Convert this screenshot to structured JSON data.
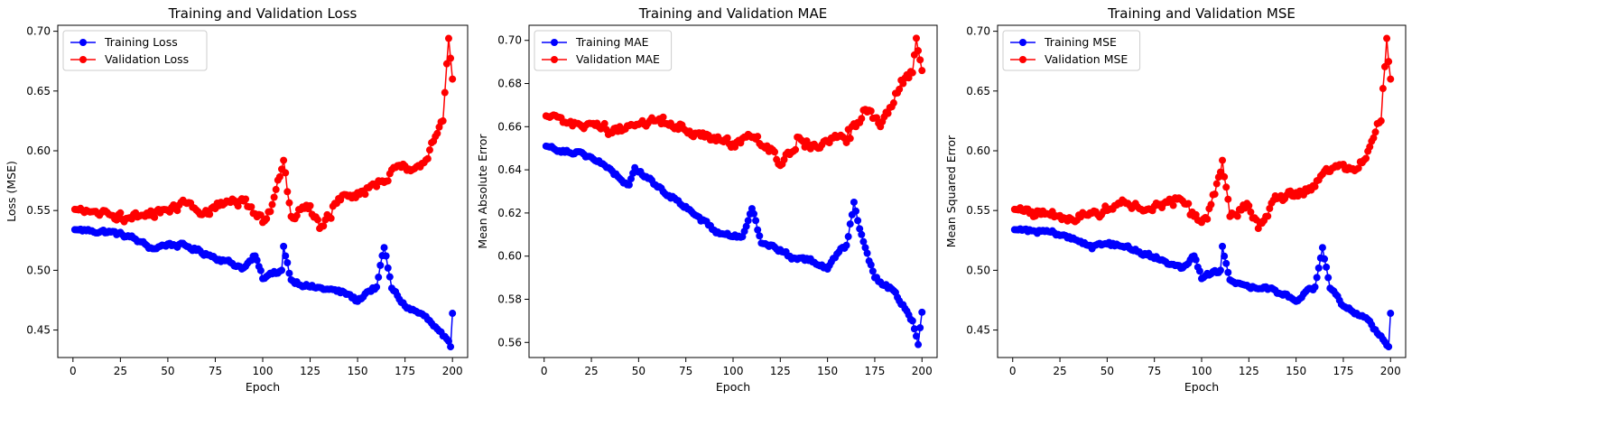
{
  "chart_data": [
    {
      "type": "line",
      "title": "Training and Validation Loss",
      "xlabel": "Epoch",
      "ylabel": "Loss (MSE)",
      "xlim": [
        -8,
        208
      ],
      "ylim": [
        0.427,
        0.705
      ],
      "xticks": [
        0,
        25,
        50,
        75,
        100,
        125,
        150,
        175,
        200
      ],
      "yticks": [
        0.45,
        0.5,
        0.55,
        0.6,
        0.65,
        0.7
      ],
      "ytick_decimals": 2,
      "grid": false,
      "legend_position": "upper-left",
      "x_start": 1,
      "series": [
        {
          "name": "Training Loss",
          "color": "#0000ff",
          "anchors": [
            [
              1,
              0.534
            ],
            [
              10,
              0.533
            ],
            [
              20,
              0.532
            ],
            [
              30,
              0.528
            ],
            [
              35,
              0.524
            ],
            [
              42,
              0.518
            ],
            [
              50,
              0.522
            ],
            [
              60,
              0.52
            ],
            [
              70,
              0.514
            ],
            [
              80,
              0.508
            ],
            [
              90,
              0.502
            ],
            [
              96,
              0.512
            ],
            [
              100,
              0.493
            ],
            [
              105,
              0.497
            ],
            [
              110,
              0.5
            ],
            [
              111,
              0.52
            ],
            [
              115,
              0.492
            ],
            [
              125,
              0.486
            ],
            [
              135,
              0.484
            ],
            [
              145,
              0.48
            ],
            [
              150,
              0.474
            ],
            [
              155,
              0.482
            ],
            [
              160,
              0.486
            ],
            [
              164,
              0.519
            ],
            [
              168,
              0.485
            ],
            [
              175,
              0.47
            ],
            [
              185,
              0.462
            ],
            [
              195,
              0.445
            ],
            [
              199,
              0.436
            ],
            [
              200,
              0.464
            ]
          ]
        },
        {
          "name": "Validation Loss",
          "color": "#ff0000",
          "anchors": [
            [
              1,
              0.551
            ],
            [
              10,
              0.549
            ],
            [
              20,
              0.546
            ],
            [
              30,
              0.544
            ],
            [
              40,
              0.546
            ],
            [
              50,
              0.55
            ],
            [
              60,
              0.556
            ],
            [
              70,
              0.55
            ],
            [
              80,
              0.556
            ],
            [
              90,
              0.558
            ],
            [
              100,
              0.54
            ],
            [
              105,
              0.555
            ],
            [
              111,
              0.592
            ],
            [
              115,
              0.545
            ],
            [
              125,
              0.554
            ],
            [
              130,
              0.535
            ],
            [
              140,
              0.56
            ],
            [
              150,
              0.565
            ],
            [
              160,
              0.57
            ],
            [
              170,
              0.586
            ],
            [
              180,
              0.585
            ],
            [
              185,
              0.59
            ],
            [
              190,
              0.608
            ],
            [
              195,
              0.625
            ],
            [
              198,
              0.694
            ],
            [
              200,
              0.66
            ]
          ]
        }
      ]
    },
    {
      "type": "line",
      "title": "Training and Validation MAE",
      "xlabel": "Epoch",
      "ylabel": "Mean Absolute Error",
      "xlim": [
        -8,
        208
      ],
      "ylim": [
        0.553,
        0.707
      ],
      "xticks": [
        0,
        25,
        50,
        75,
        100,
        125,
        150,
        175,
        200
      ],
      "yticks": [
        0.56,
        0.58,
        0.6,
        0.62,
        0.64,
        0.66,
        0.68,
        0.7
      ],
      "ytick_decimals": 2,
      "grid": false,
      "legend_position": "upper-left",
      "x_start": 1,
      "series": [
        {
          "name": "Training MAE",
          "color": "#0000ff",
          "anchors": [
            [
              1,
              0.651
            ],
            [
              10,
              0.649
            ],
            [
              20,
              0.648
            ],
            [
              30,
              0.643
            ],
            [
              40,
              0.636
            ],
            [
              45,
              0.633
            ],
            [
              48,
              0.641
            ],
            [
              55,
              0.636
            ],
            [
              60,
              0.632
            ],
            [
              70,
              0.626
            ],
            [
              75,
              0.623
            ],
            [
              80,
              0.619
            ],
            [
              90,
              0.612
            ],
            [
              100,
              0.609
            ],
            [
              105,
              0.609
            ],
            [
              110,
              0.622
            ],
            [
              115,
              0.606
            ],
            [
              125,
              0.603
            ],
            [
              130,
              0.6
            ],
            [
              140,
              0.598
            ],
            [
              150,
              0.594
            ],
            [
              155,
              0.601
            ],
            [
              160,
              0.605
            ],
            [
              164,
              0.625
            ],
            [
              168,
              0.61
            ],
            [
              175,
              0.59
            ],
            [
              185,
              0.584
            ],
            [
              195,
              0.57
            ],
            [
              198,
              0.559
            ],
            [
              200,
              0.574
            ]
          ]
        },
        {
          "name": "Validation MAE",
          "color": "#ff0000",
          "anchors": [
            [
              1,
              0.665
            ],
            [
              10,
              0.662
            ],
            [
              20,
              0.66
            ],
            [
              30,
              0.659
            ],
            [
              40,
              0.66
            ],
            [
              50,
              0.661
            ],
            [
              60,
              0.663
            ],
            [
              70,
              0.66
            ],
            [
              80,
              0.657
            ],
            [
              90,
              0.655
            ],
            [
              100,
              0.652
            ],
            [
              110,
              0.655
            ],
            [
              120,
              0.65
            ],
            [
              125,
              0.642
            ],
            [
              135,
              0.655
            ],
            [
              145,
              0.65
            ],
            [
              155,
              0.655
            ],
            [
              165,
              0.66
            ],
            [
              170,
              0.668
            ],
            [
              178,
              0.66
            ],
            [
              185,
              0.671
            ],
            [
              190,
              0.68
            ],
            [
              195,
              0.685
            ],
            [
              197,
              0.701
            ],
            [
              200,
              0.686
            ]
          ]
        }
      ]
    },
    {
      "type": "line",
      "title": "Training and Validation MSE",
      "xlabel": "Epoch",
      "ylabel": "Mean Squared Error",
      "xlim": [
        -8,
        208
      ],
      "ylim": [
        0.427,
        0.705
      ],
      "xticks": [
        0,
        25,
        50,
        75,
        100,
        125,
        150,
        175,
        200
      ],
      "yticks": [
        0.45,
        0.5,
        0.55,
        0.6,
        0.65,
        0.7
      ],
      "ytick_decimals": 2,
      "grid": false,
      "legend_position": "upper-left",
      "x_start": 1,
      "series": [
        {
          "name": "Training MSE",
          "color": "#0000ff",
          "anchors": [
            [
              1,
              0.534
            ],
            [
              10,
              0.533
            ],
            [
              20,
              0.532
            ],
            [
              30,
              0.528
            ],
            [
              35,
              0.524
            ],
            [
              42,
              0.518
            ],
            [
              50,
              0.522
            ],
            [
              60,
              0.52
            ],
            [
              70,
              0.514
            ],
            [
              80,
              0.508
            ],
            [
              90,
              0.502
            ],
            [
              96,
              0.512
            ],
            [
              100,
              0.493
            ],
            [
              105,
              0.497
            ],
            [
              110,
              0.5
            ],
            [
              111,
              0.52
            ],
            [
              115,
              0.492
            ],
            [
              125,
              0.486
            ],
            [
              135,
              0.484
            ],
            [
              145,
              0.48
            ],
            [
              150,
              0.474
            ],
            [
              155,
              0.482
            ],
            [
              160,
              0.486
            ],
            [
              164,
              0.519
            ],
            [
              168,
              0.485
            ],
            [
              175,
              0.47
            ],
            [
              185,
              0.462
            ],
            [
              195,
              0.445
            ],
            [
              199,
              0.436
            ],
            [
              200,
              0.464
            ]
          ]
        },
        {
          "name": "Validation MSE",
          "color": "#ff0000",
          "anchors": [
            [
              1,
              0.551
            ],
            [
              10,
              0.549
            ],
            [
              20,
              0.546
            ],
            [
              30,
              0.544
            ],
            [
              40,
              0.546
            ],
            [
              50,
              0.55
            ],
            [
              60,
              0.556
            ],
            [
              70,
              0.55
            ],
            [
              80,
              0.556
            ],
            [
              90,
              0.558
            ],
            [
              100,
              0.54
            ],
            [
              105,
              0.555
            ],
            [
              111,
              0.592
            ],
            [
              115,
              0.545
            ],
            [
              125,
              0.554
            ],
            [
              130,
              0.535
            ],
            [
              140,
              0.56
            ],
            [
              150,
              0.565
            ],
            [
              160,
              0.57
            ],
            [
              170,
              0.586
            ],
            [
              180,
              0.585
            ],
            [
              185,
              0.59
            ],
            [
              190,
              0.608
            ],
            [
              195,
              0.625
            ],
            [
              198,
              0.694
            ],
            [
              200,
              0.66
            ]
          ]
        }
      ]
    }
  ]
}
